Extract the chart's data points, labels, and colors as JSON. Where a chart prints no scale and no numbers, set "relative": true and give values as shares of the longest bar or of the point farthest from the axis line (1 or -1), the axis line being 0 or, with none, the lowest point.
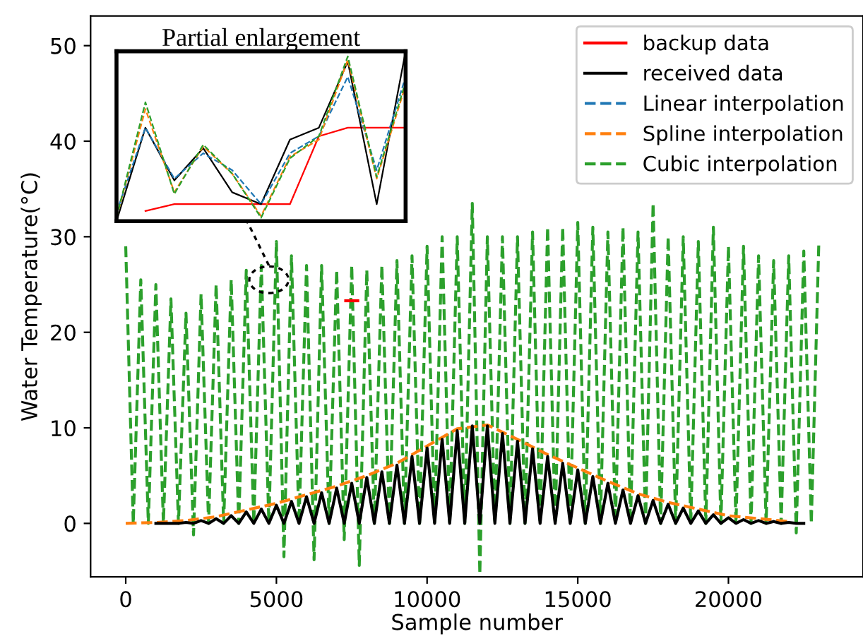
{
  "chart_data": [
    {
      "type": "line",
      "xlabel": "Sample number",
      "ylabel": "Water Temperature(°C)",
      "xlim": [
        -1165,
        24465
      ],
      "ylim": [
        -5.6,
        53.1
      ],
      "xticks": [
        0,
        5000,
        10000,
        15000,
        20000
      ],
      "yticks": [
        0,
        10,
        20,
        30,
        40,
        50
      ],
      "legend": "top right",
      "grid": false,
      "marker": "none",
      "series": [
        {
          "name": "Cubic interpolation",
          "color": "#2ca02c",
          "line_style": "dashed",
          "x": [
            0,
            250,
            500,
            750,
            1000,
            1250,
            1500,
            1750,
            2000,
            2250,
            2500,
            2750,
            3000,
            3250,
            3500,
            3750,
            4000,
            4250,
            4500,
            4750,
            5000,
            5250,
            5500,
            5750,
            6000,
            6250,
            6500,
            6750,
            7000,
            7250,
            7500,
            7750,
            8000,
            8250,
            8500,
            8750,
            9000,
            9250,
            9500,
            9750,
            10000,
            10250,
            10500,
            10750,
            11000,
            11250,
            11500,
            11750,
            12000,
            12250,
            12500,
            12750,
            13000,
            13250,
            13500,
            13750,
            14000,
            14250,
            14500,
            14750,
            15000,
            15250,
            15500,
            15750,
            16000,
            16250,
            16500,
            16750,
            17000,
            17250,
            17500,
            17750,
            18000,
            18250,
            18500,
            18750,
            19000,
            19250,
            19500,
            19750,
            20000,
            20250,
            20500,
            20750,
            21000,
            21250,
            21500,
            21750,
            22000,
            22250,
            22500,
            22750,
            23000
          ],
          "values": [
            29,
            0,
            25.5,
            0,
            25,
            0,
            23.5,
            0,
            22,
            -1.2,
            24,
            0,
            25,
            0,
            25.5,
            0,
            26.5,
            0,
            27,
            0,
            29.5,
            -3.5,
            28,
            0,
            27,
            -3.8,
            27,
            0,
            26.5,
            -1.7,
            27,
            -4.4,
            26.5,
            0,
            27,
            0,
            27.5,
            0,
            28,
            0,
            29,
            0,
            30,
            0,
            30,
            0,
            33.5,
            -5.3,
            30,
            0,
            30,
            0,
            30,
            0,
            30.5,
            0,
            31,
            0,
            31,
            0,
            31.5,
            0,
            31,
            0,
            30.5,
            0,
            31,
            0,
            30.5,
            0,
            33.5,
            0,
            30,
            0,
            30,
            0,
            29.5,
            0,
            31,
            0,
            29,
            0,
            29,
            0,
            28,
            0,
            27.5,
            0,
            28,
            -1.0,
            28.5,
            0,
            29.5
          ]
        },
        {
          "name": "Spline interpolation",
          "color": "#ff7f0e",
          "line_style": "dashed",
          "x": [
            0,
            1000,
            2000,
            3000,
            4000,
            5000,
            6000,
            7000,
            8000,
            9000,
            10000,
            11000,
            12000,
            13000,
            14000,
            15000,
            16000,
            17000,
            18000,
            19000,
            20000,
            21000,
            22000
          ],
          "values": [
            0,
            0.1,
            0.3,
            0.7,
            1.4,
            2.1,
            3.0,
            3.9,
            5.0,
            6.3,
            8.1,
            9.9,
            10.3,
            8.8,
            7.2,
            5.8,
            4.4,
            3.1,
            2.2,
            1.5,
            0.8,
            0.5,
            0.2
          ]
        },
        {
          "name": "Linear interpolation",
          "color": "#1f77b4",
          "line_style": "dashed"
        },
        {
          "name": "received data",
          "color": "#000000",
          "line_style": "solid",
          "x": [
            1000,
            1250,
            1500,
            1750,
            2000,
            2250,
            2500,
            2750,
            3000,
            3250,
            3500,
            3750,
            4000,
            4250,
            4500,
            4750,
            5000,
            5250,
            5500,
            5750,
            6000,
            6250,
            6500,
            6750,
            7000,
            7250,
            7500,
            7750,
            8000,
            8250,
            8500,
            8750,
            9000,
            9250,
            9500,
            9750,
            10000,
            10250,
            10500,
            10750,
            11000,
            11250,
            11500,
            11750,
            12000,
            12250,
            12500,
            12750,
            13000,
            13250,
            13500,
            13750,
            14000,
            14250,
            14500,
            14750,
            15000,
            15250,
            15500,
            15750,
            16000,
            16250,
            16500,
            16750,
            17000,
            17250,
            17500,
            17750,
            18000,
            18250,
            18500,
            18750,
            19000,
            19250,
            19500,
            19750,
            20000,
            20250,
            20500,
            20750,
            21000,
            21250,
            21500,
            21750,
            22000,
            22250,
            22500
          ],
          "values": [
            0,
            0,
            0,
            0,
            0.1,
            0,
            0.3,
            0,
            0.5,
            0,
            0.8,
            0,
            1.2,
            0,
            1.5,
            0,
            1.9,
            0,
            2.3,
            0,
            2.8,
            0,
            3.2,
            0,
            3.7,
            0,
            4.2,
            0,
            4.8,
            0,
            5.4,
            0,
            6.1,
            0,
            7.0,
            0,
            7.9,
            0,
            8.8,
            0,
            9.7,
            0,
            10.2,
            0,
            10.2,
            0,
            9.4,
            0,
            8.6,
            0,
            7.8,
            0,
            7.0,
            0,
            6.3,
            0,
            5.6,
            0,
            4.9,
            0,
            4.2,
            0,
            3.5,
            0,
            2.9,
            0,
            2.4,
            0,
            2.0,
            0,
            1.6,
            0,
            1.3,
            0,
            0.9,
            0,
            0.6,
            0,
            0.4,
            0,
            0.3,
            0,
            0.2,
            0,
            0.1,
            0,
            0
          ]
        },
        {
          "name": "backup data",
          "color": "#ff0000",
          "line_style": "solid",
          "x": [
            7300,
            7700
          ],
          "values": [
            23.3,
            23.3
          ]
        }
      ]
    },
    {
      "type": "line",
      "title": "Partial enlargement",
      "relative": true,
      "legend": false,
      "marker": "none",
      "categories": [
        null,
        null,
        null,
        null,
        null,
        null,
        null,
        null,
        null,
        null,
        null
      ],
      "series": [
        {
          "color": "#ff0000",
          "line_style": "solid",
          "values": [
            null,
            0.06,
            0.1,
            0.1,
            0.1,
            0.1,
            0.1,
            0.5,
            0.55,
            0.55,
            0.55
          ]
        },
        {
          "color": "#000000",
          "line_style": "solid",
          "values": [
            0,
            0.55,
            0.24,
            0.43,
            0.17,
            0.1,
            0.48,
            0.55,
            0.94,
            0.1,
            1.0
          ]
        },
        {
          "color": "#1f77b4",
          "line_style": "dashed",
          "values": [
            0.05,
            0.55,
            0.25,
            0.4,
            0.3,
            0.1,
            0.4,
            0.5,
            0.85,
            0.3,
            0.85
          ]
        },
        {
          "color": "#ff7f0e",
          "line_style": "dashed",
          "values": [
            0.02,
            0.66,
            0.17,
            0.44,
            0.28,
            0.03,
            0.38,
            0.48,
            0.95,
            0.25,
            0.8
          ]
        },
        {
          "color": "#2ca02c",
          "line_style": "dashed",
          "values": [
            0.02,
            0.7,
            0.16,
            0.45,
            0.28,
            0.02,
            0.37,
            0.5,
            0.97,
            0.26,
            0.82
          ]
        }
      ]
    }
  ]
}
